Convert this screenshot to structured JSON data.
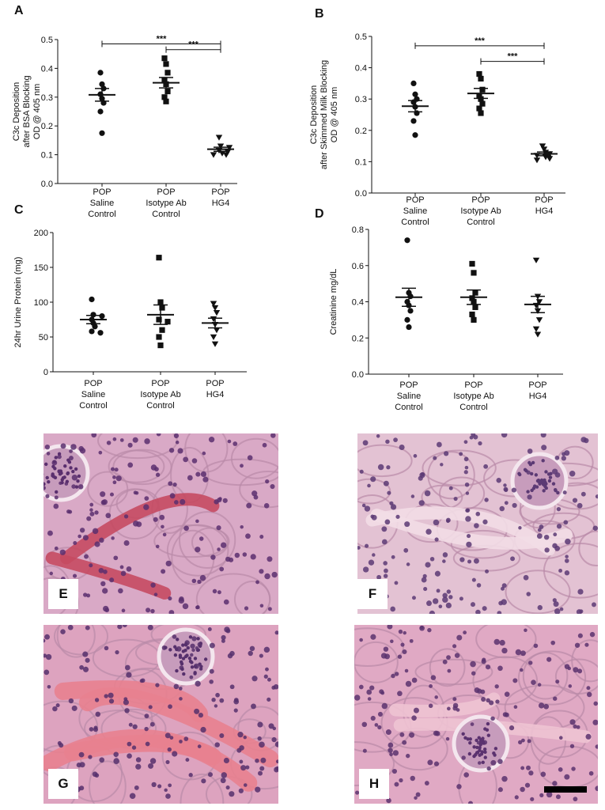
{
  "chart_data": [
    {
      "panel": "A",
      "type": "scatter",
      "ylabel": [
        "C3c Deposition",
        "after BSA Blocking",
        "OD @ 405 nm"
      ],
      "ylim": [
        0.0,
        0.5
      ],
      "yticks": [
        "0.0",
        "0.1",
        "0.2",
        "0.3",
        "0.4",
        "0.5"
      ],
      "ytick_values": [
        0.0,
        0.1,
        0.2,
        0.3,
        0.4,
        0.5
      ],
      "categories": [
        [
          "POP",
          "Saline",
          "Control"
        ],
        [
          "POP",
          "Isotype Ab",
          "Control"
        ],
        [
          "POP",
          "HG4"
        ]
      ],
      "groups": [
        {
          "marker": "circle",
          "values": [
            0.385,
            0.345,
            0.33,
            0.31,
            0.295,
            0.28,
            0.25,
            0.175
          ],
          "mean": 0.308,
          "sem": 0.022
        },
        {
          "marker": "square",
          "values": [
            0.435,
            0.415,
            0.385,
            0.36,
            0.345,
            0.32,
            0.3,
            0.285
          ],
          "mean": 0.35,
          "sem": 0.018
        },
        {
          "marker": "triangle-down",
          "values": [
            0.16,
            0.13,
            0.125,
            0.115,
            0.11,
            0.105,
            0.1,
            0.1
          ],
          "mean": 0.119,
          "sem": 0.007
        }
      ],
      "significance": [
        {
          "from": 0,
          "to": 2,
          "y": 0.485,
          "label": "***"
        },
        {
          "from": 1,
          "to": 2,
          "y": 0.465,
          "label": "***"
        }
      ],
      "grid": false
    },
    {
      "panel": "B",
      "type": "scatter",
      "ylabel": [
        "C3c Deposition",
        "after Skimmed Milk Blocking",
        "OD @ 405 nm"
      ],
      "ylim": [
        0.0,
        0.5
      ],
      "yticks": [
        "0.0",
        "0.1",
        "0.2",
        "0.3",
        "0.4",
        "0.5"
      ],
      "ytick_values": [
        0.0,
        0.1,
        0.2,
        0.3,
        0.4,
        0.5
      ],
      "categories": [
        [
          "POP",
          "Saline",
          "Control"
        ],
        [
          "POP",
          "Isotype Ab",
          "Control"
        ],
        [
          "POP",
          "HG4"
        ]
      ],
      "groups": [
        {
          "marker": "circle",
          "values": [
            0.35,
            0.315,
            0.3,
            0.29,
            0.275,
            0.255,
            0.23,
            0.185
          ],
          "mean": 0.277,
          "sem": 0.018
        },
        {
          "marker": "square",
          "values": [
            0.38,
            0.365,
            0.33,
            0.31,
            0.3,
            0.285,
            0.27,
            0.255
          ],
          "mean": 0.318,
          "sem": 0.016
        },
        {
          "marker": "triangle-down",
          "values": [
            0.15,
            0.14,
            0.13,
            0.125,
            0.12,
            0.115,
            0.11,
            0.105
          ],
          "mean": 0.125,
          "sem": 0.006
        }
      ],
      "significance": [
        {
          "from": 0,
          "to": 2,
          "y": 0.47,
          "label": "***"
        },
        {
          "from": 1,
          "to": 2,
          "y": 0.42,
          "label": "***"
        }
      ],
      "grid": false
    },
    {
      "panel": "C",
      "type": "scatter",
      "ylabel": [
        "24hr Urine Protein (mg)"
      ],
      "ylim": [
        0,
        200
      ],
      "yticks": [
        "0",
        "50",
        "100",
        "150",
        "200"
      ],
      "ytick_values": [
        0,
        50,
        100,
        150,
        200
      ],
      "categories": [
        [
          "POP",
          "Saline",
          "Control"
        ],
        [
          "POP",
          "Isotype Ab",
          "Control"
        ],
        [
          "POP",
          "HG4"
        ]
      ],
      "groups": [
        {
          "marker": "circle",
          "values": [
            104,
            82,
            80,
            75,
            70,
            65,
            58,
            56
          ],
          "mean": 75,
          "sem": 6
        },
        {
          "marker": "square",
          "values": [
            164,
            100,
            92,
            75,
            72,
            60,
            50,
            38
          ],
          "mean": 82,
          "sem": 14
        },
        {
          "marker": "triangle-down",
          "values": [
            98,
            92,
            85,
            76,
            68,
            60,
            50,
            40
          ],
          "mean": 70,
          "sem": 7
        }
      ],
      "significance": [],
      "grid": false
    },
    {
      "panel": "D",
      "type": "scatter",
      "ylabel": [
        "Creatinine mg/dL"
      ],
      "ylim": [
        0.0,
        0.8
      ],
      "yticks": [
        "0.0",
        "0.2",
        "0.4",
        "0.6",
        "0.8"
      ],
      "ytick_values": [
        0.0,
        0.2,
        0.4,
        0.6,
        0.8
      ],
      "categories": [
        [
          "POP",
          "Saline",
          "Control"
        ],
        [
          "POP",
          "Isotype Ab",
          "Control"
        ],
        [
          "POP",
          "HG4"
        ]
      ],
      "groups": [
        {
          "marker": "circle",
          "values": [
            0.74,
            0.45,
            0.43,
            0.4,
            0.38,
            0.35,
            0.3,
            0.26
          ],
          "mean": 0.425,
          "sem": 0.05
        },
        {
          "marker": "square",
          "values": [
            0.61,
            0.56,
            0.45,
            0.42,
            0.4,
            0.37,
            0.33,
            0.3
          ],
          "mean": 0.425,
          "sem": 0.04
        },
        {
          "marker": "triangle-down",
          "values": [
            0.63,
            0.43,
            0.4,
            0.38,
            0.35,
            0.3,
            0.25,
            0.22
          ],
          "mean": 0.385,
          "sem": 0.045
        }
      ],
      "significance": [],
      "grid": false
    }
  ],
  "histology": [
    {
      "panel": "E",
      "color_bg": "#d9a9c6",
      "color_nuclei": "#5a2f6e",
      "color_accent": "#c54a62"
    },
    {
      "panel": "F",
      "color_bg": "#e3c2d3",
      "color_nuclei": "#5c3a74",
      "color_accent": "#f2dde6"
    },
    {
      "panel": "G",
      "color_bg": "#dda3bf",
      "color_nuclei": "#56306c",
      "color_accent": "#e8818f"
    },
    {
      "panel": "H",
      "color_bg": "#e0a9c4",
      "color_nuclei": "#5b326f",
      "color_accent": "#eec3d3"
    }
  ],
  "colors": {
    "marker": "#111111",
    "axis": "#111111"
  }
}
